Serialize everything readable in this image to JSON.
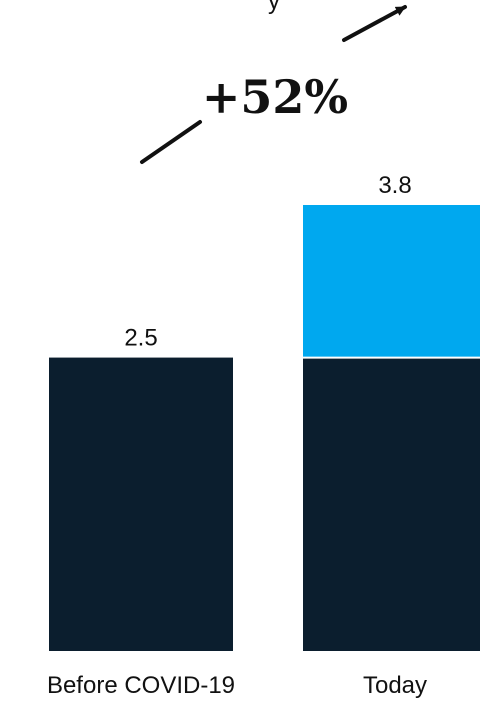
{
  "chart_data": {
    "type": "bar",
    "stacked": true,
    "categories": [
      "Before COVID-19",
      "Today"
    ],
    "series": [
      {
        "values": [
          2.5,
          2.5
        ],
        "color": "#0b1e2e"
      },
      {
        "values": [
          0,
          1.3
        ],
        "color": "#00a8ef"
      }
    ],
    "totals": [
      2.5,
      3.8
    ],
    "total_labels": [
      "2.5",
      "3.8"
    ],
    "ylim": [
      0,
      3.8
    ],
    "annotation": {
      "text": "+52%",
      "arrow": "up-right"
    },
    "top_fragment": "y"
  }
}
